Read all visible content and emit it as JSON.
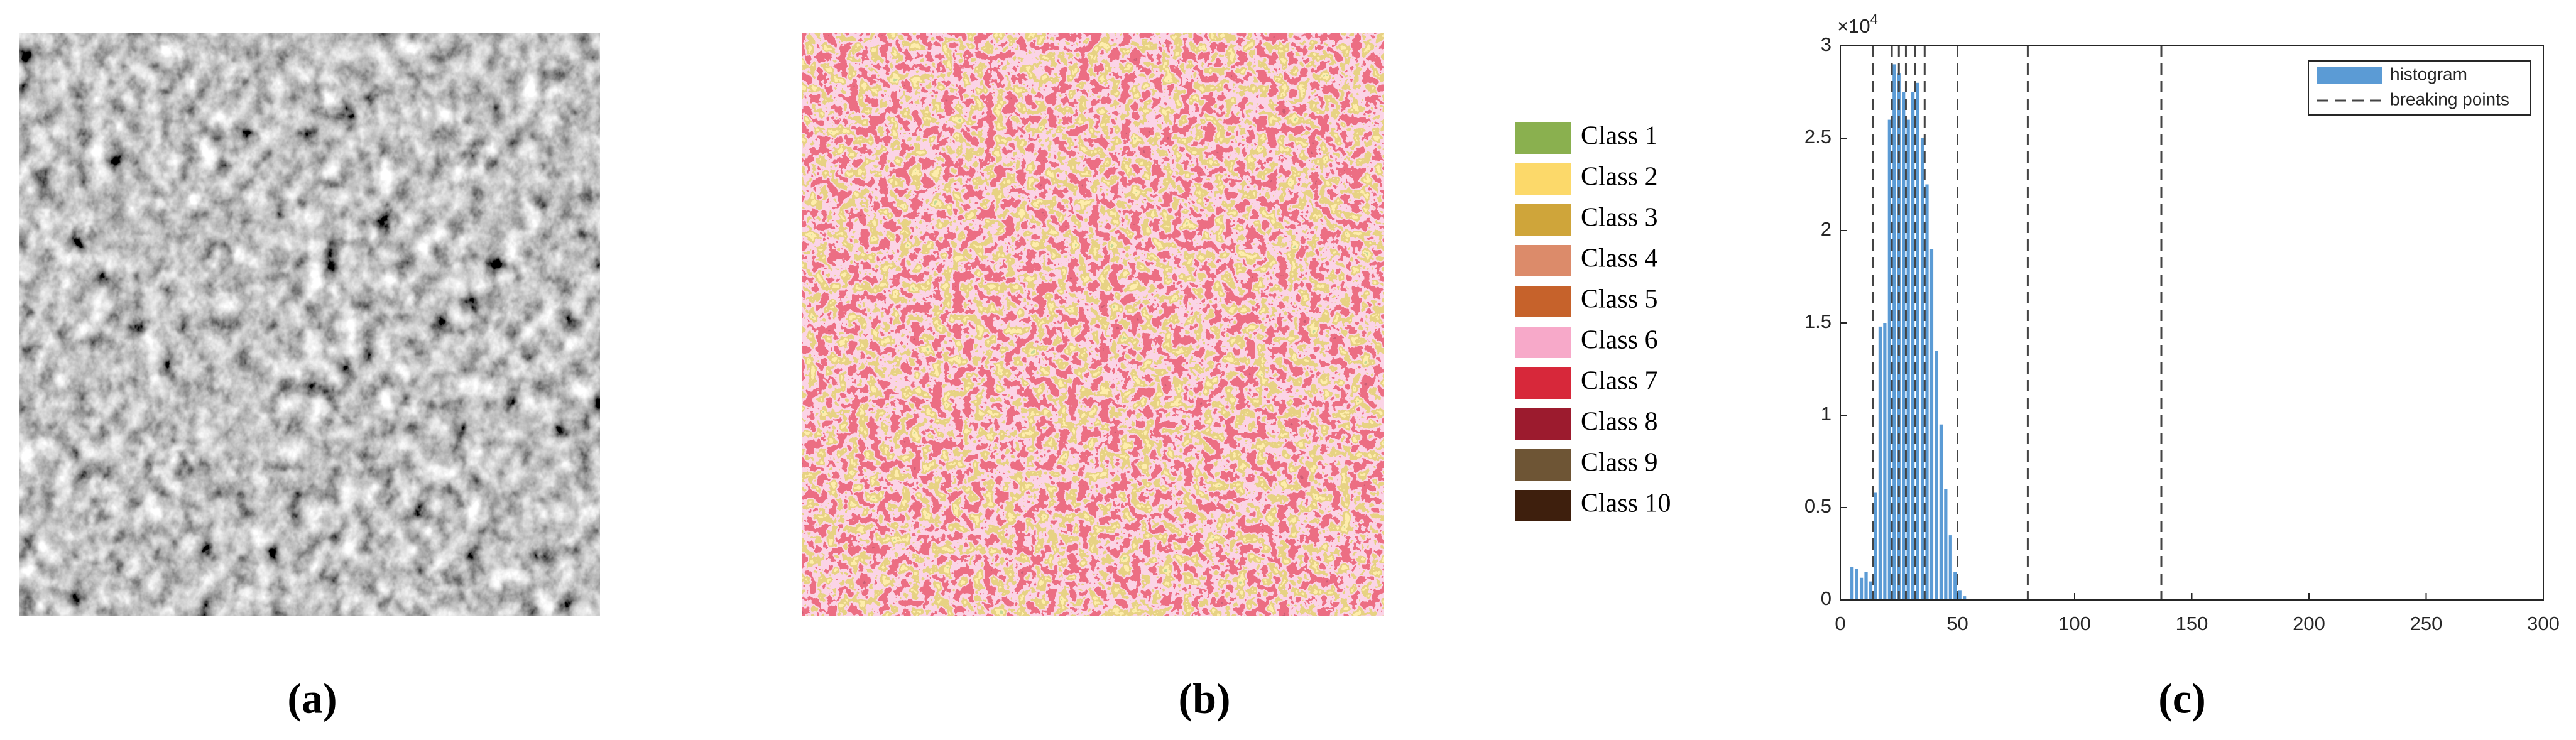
{
  "panels": [
    {
      "label": "(a)"
    },
    {
      "label": "(b)",
      "legend": [
        {
          "name": "Class 1",
          "color": "#8ab04f"
        },
        {
          "name": "Class 2",
          "color": "#fcd96a"
        },
        {
          "name": "Class 3",
          "color": "#cfa53a"
        },
        {
          "name": "Class 4",
          "color": "#dc8b6a"
        },
        {
          "name": "Class 5",
          "color": "#c6622b"
        },
        {
          "name": "Class 6",
          "color": "#f7a9c9"
        },
        {
          "name": "Class 7",
          "color": "#d7283a"
        },
        {
          "name": "Class 8",
          "color": "#9c1b2e"
        },
        {
          "name": "Class 9",
          "color": "#6e5535"
        },
        {
          "name": "Class 10",
          "color": "#3e1f0d"
        }
      ]
    },
    {
      "label": "(c)"
    }
  ],
  "chart_data": {
    "type": "histogram",
    "series_name": "histogram",
    "color": "#5b9bd5",
    "bins": [
      4,
      6,
      8,
      10,
      12,
      14,
      16,
      18,
      20,
      22,
      24,
      26,
      28,
      30,
      32,
      34,
      36,
      38,
      40,
      42,
      44,
      46,
      48,
      50,
      52,
      54
    ],
    "values": [
      1800,
      1700,
      1200,
      1500,
      1000,
      5800,
      14800,
      15000,
      26000,
      29000,
      28500,
      27500,
      26000,
      27500,
      28000,
      25000,
      22500,
      19000,
      13500,
      9500,
      6000,
      3500,
      1500,
      500,
      200
    ],
    "breaking_points": {
      "name": "breaking points",
      "values": [
        14,
        22,
        25,
        28,
        32,
        36,
        50,
        80,
        137
      ]
    },
    "xlim": [
      0,
      300
    ],
    "ylim": [
      0,
      30000
    ],
    "xticks": [
      0,
      50,
      100,
      150,
      200,
      250,
      300
    ],
    "yticks": [
      {
        "value": 0,
        "label": "0"
      },
      {
        "value": 5000,
        "label": "0.5"
      },
      {
        "value": 10000,
        "label": "1"
      },
      {
        "value": 15000,
        "label": "1.5"
      },
      {
        "value": 20000,
        "label": "2"
      },
      {
        "value": 25000,
        "label": "2.5"
      },
      {
        "value": 30000,
        "label": "3"
      }
    ],
    "y_scale_label": {
      "base": "×10",
      "exponent": "4"
    },
    "legend": "upper right"
  }
}
